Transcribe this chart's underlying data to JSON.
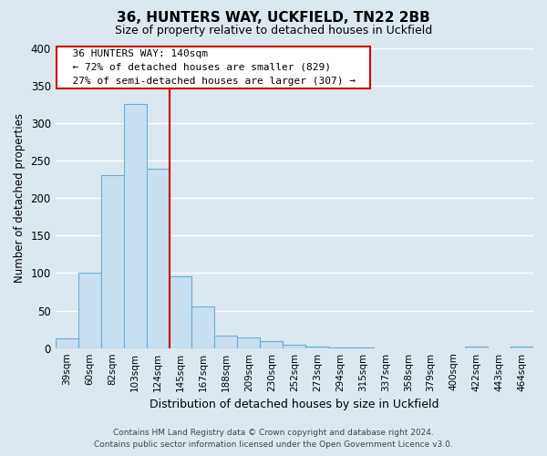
{
  "title": "36, HUNTERS WAY, UCKFIELD, TN22 2BB",
  "subtitle": "Size of property relative to detached houses in Uckfield",
  "xlabel": "Distribution of detached houses by size in Uckfield",
  "ylabel": "Number of detached properties",
  "bar_labels": [
    "39sqm",
    "60sqm",
    "82sqm",
    "103sqm",
    "124sqm",
    "145sqm",
    "167sqm",
    "188sqm",
    "209sqm",
    "230sqm",
    "252sqm",
    "273sqm",
    "294sqm",
    "315sqm",
    "337sqm",
    "358sqm",
    "379sqm",
    "400sqm",
    "422sqm",
    "443sqm",
    "464sqm"
  ],
  "bar_values": [
    13,
    101,
    230,
    325,
    239,
    96,
    55,
    17,
    14,
    9,
    4,
    2,
    1,
    1,
    0,
    0,
    0,
    0,
    2,
    0,
    2
  ],
  "bar_color": "#c8dff0",
  "bar_edge_color": "#6baed6",
  "vline_x": 4.5,
  "vline_color": "#cc0000",
  "ylim": [
    0,
    400
  ],
  "yticks": [
    0,
    50,
    100,
    150,
    200,
    250,
    300,
    350,
    400
  ],
  "annotation_title": "36 HUNTERS WAY: 140sqm",
  "annotation_line1": "← 72% of detached houses are smaller (829)",
  "annotation_line2": "27% of semi-detached houses are larger (307) →",
  "annotation_box_facecolor": "#ffffff",
  "annotation_box_edgecolor": "#cc0000",
  "footer_line1": "Contains HM Land Registry data © Crown copyright and database right 2024.",
  "footer_line2": "Contains public sector information licensed under the Open Government Licence v3.0.",
  "background_color": "#dce8f0",
  "grid_color": "#ffffff",
  "axes_facecolor": "#dce8f0"
}
